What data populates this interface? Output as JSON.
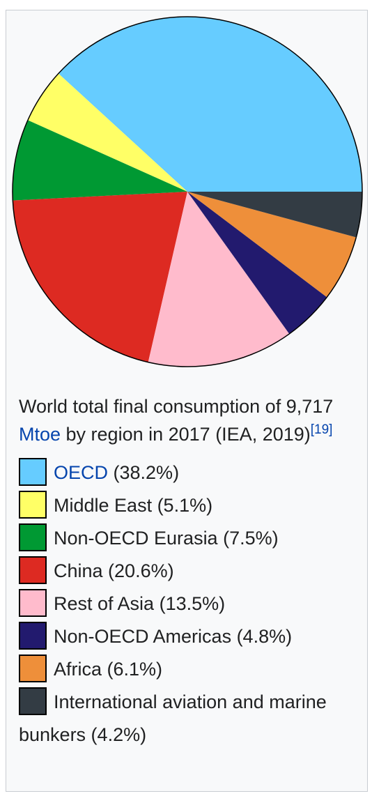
{
  "caption": {
    "part1": "World total final consumption of 9,717 ",
    "link": "Mtoe",
    "part2": " by region in 2017 (IEA, 2019)",
    "ref": "[19]"
  },
  "legend": [
    {
      "label": "OECD",
      "suffix": " (38.2%)",
      "color": "#66ccff",
      "link": true
    },
    {
      "label": "Middle East (5.1%)",
      "suffix": "",
      "color": "#ffff66",
      "link": false
    },
    {
      "label": "Non-OECD Eurasia (7.5%)",
      "suffix": "",
      "color": "#009933",
      "link": false
    },
    {
      "label": "China (20.6%)",
      "suffix": "",
      "color": "#dd2a22",
      "link": false
    },
    {
      "label": "Rest of Asia (13.5%)",
      "suffix": "",
      "color": "#ffbbcc",
      "link": false
    },
    {
      "label": "Non-OECD Americas (4.8%)",
      "suffix": "",
      "color": "#221a6e",
      "link": false
    },
    {
      "label": "Africa (6.1%)",
      "suffix": "",
      "color": "#ee8f3a",
      "link": false
    },
    {
      "label": "International aviation and marine bunkers (4.2%)",
      "suffix": "",
      "color": "#333c44",
      "link": false
    }
  ],
  "chart_data": {
    "type": "pie",
    "title": "",
    "categories": [
      "OECD",
      "Middle East",
      "Non-OECD Eurasia",
      "China",
      "Rest of Asia",
      "Non-OECD Americas",
      "Africa",
      "International aviation and marine bunkers"
    ],
    "values": [
      38.2,
      5.1,
      7.5,
      20.6,
      13.5,
      4.8,
      6.1,
      4.2
    ],
    "colors": [
      "#66ccff",
      "#ffff66",
      "#009933",
      "#dd2a22",
      "#ffbbcc",
      "#221a6e",
      "#ee8f3a",
      "#333c44"
    ],
    "start": "3 o'clock",
    "direction": "counterclockwise",
    "unit": "%"
  }
}
